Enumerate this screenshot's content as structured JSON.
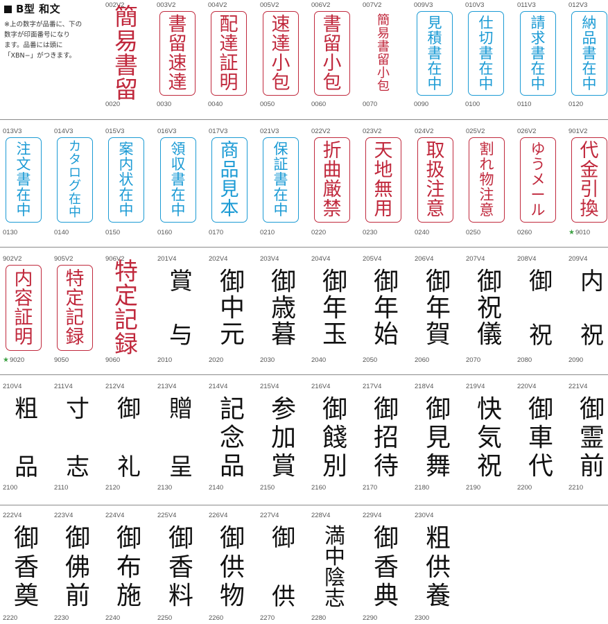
{
  "header": {
    "title": "B型 和文",
    "note": [
      "※上の数字が品番に、下の",
      "数字が印面番号になり",
      "ます。品番には頭に",
      "「XBN−」がつきます。"
    ]
  },
  "colors": {
    "red": "#c0283c",
    "blue": "#1a9ad4",
    "ink": "#111111",
    "star": "#3da144"
  },
  "items": [
    {
      "code": "002V2",
      "text": "簡易書留",
      "num": "0020",
      "style": "red-noborder"
    },
    {
      "code": "003V2",
      "text": "書留速達",
      "num": "0030",
      "style": "red"
    },
    {
      "code": "004V2",
      "text": "配達証明",
      "num": "0040",
      "style": "red"
    },
    {
      "code": "005V2",
      "text": "速達小包",
      "num": "0050",
      "style": "red"
    },
    {
      "code": "006V2",
      "text": "書留小包",
      "num": "0060",
      "style": "red"
    },
    {
      "code": "007V2",
      "text": "簡易書留小包",
      "num": "0070",
      "style": "red-noborder"
    },
    {
      "code": "009V3",
      "text": "見積書在中",
      "num": "0090",
      "style": "blue"
    },
    {
      "code": "010V3",
      "text": "仕切書在中",
      "num": "0100",
      "style": "blue"
    },
    {
      "code": "011V3",
      "text": "請求書在中",
      "num": "0110",
      "style": "blue"
    },
    {
      "code": "012V3",
      "text": "納品書在中",
      "num": "0120",
      "style": "blue"
    },
    {
      "code": "013V3",
      "text": "注文書在中",
      "num": "0130",
      "style": "blue"
    },
    {
      "code": "014V3",
      "text": "カタログ在中",
      "num": "0140",
      "style": "blue"
    },
    {
      "code": "015V3",
      "text": "案内状在中",
      "num": "0150",
      "style": "blue"
    },
    {
      "code": "016V3",
      "text": "領収書在中",
      "num": "0160",
      "style": "blue"
    },
    {
      "code": "017V3",
      "text": "商品見本",
      "num": "0170",
      "style": "blue"
    },
    {
      "code": "021V3",
      "text": "保証書在中",
      "num": "0210",
      "style": "blue"
    },
    {
      "code": "022V2",
      "text": "折曲厳禁",
      "num": "0220",
      "style": "red"
    },
    {
      "code": "023V2",
      "text": "天地無用",
      "num": "0230",
      "style": "red"
    },
    {
      "code": "024V2",
      "text": "取扱注意",
      "num": "0240",
      "style": "red"
    },
    {
      "code": "025V2",
      "text": "割れ物注意",
      "num": "0250",
      "style": "red"
    },
    {
      "code": "026V2",
      "text": "ゆうメール",
      "num": "0260",
      "style": "red"
    },
    {
      "code": "901V2",
      "text": "代金引換",
      "num": "9010",
      "style": "red",
      "star": true
    },
    {
      "code": "902V2",
      "text": "内容証明",
      "num": "9020",
      "style": "red",
      "star": true
    },
    {
      "code": "905V2",
      "text": "特定記録",
      "num": "9050",
      "style": "red"
    },
    {
      "code": "906V2",
      "text": "特定記録",
      "num": "9060",
      "style": "red-noborder"
    },
    {
      "code": "201V4",
      "text": "賞与",
      "num": "2010",
      "style": "ink"
    },
    {
      "code": "202V4",
      "text": "御中元",
      "num": "2020",
      "style": "ink"
    },
    {
      "code": "203V4",
      "text": "御歳暮",
      "num": "2030",
      "style": "ink"
    },
    {
      "code": "204V4",
      "text": "御年玉",
      "num": "2040",
      "style": "ink"
    },
    {
      "code": "205V4",
      "text": "御年始",
      "num": "2050",
      "style": "ink"
    },
    {
      "code": "206V4",
      "text": "御年賀",
      "num": "2060",
      "style": "ink"
    },
    {
      "code": "207V4",
      "text": "御祝儀",
      "num": "2070",
      "style": "ink"
    },
    {
      "code": "208V4",
      "text": "御祝",
      "num": "2080",
      "style": "ink"
    },
    {
      "code": "209V4",
      "text": "内祝",
      "num": "2090",
      "style": "ink"
    },
    {
      "code": "210V4",
      "text": "粗品",
      "num": "2100",
      "style": "ink"
    },
    {
      "code": "211V4",
      "text": "寸志",
      "num": "2110",
      "style": "ink"
    },
    {
      "code": "212V4",
      "text": "御礼",
      "num": "2120",
      "style": "ink"
    },
    {
      "code": "213V4",
      "text": "贈呈",
      "num": "2130",
      "style": "ink"
    },
    {
      "code": "214V4",
      "text": "記念品",
      "num": "2140",
      "style": "ink"
    },
    {
      "code": "215V4",
      "text": "参加賞",
      "num": "2150",
      "style": "ink"
    },
    {
      "code": "216V4",
      "text": "御餞別",
      "num": "2160",
      "style": "ink"
    },
    {
      "code": "217V4",
      "text": "御招待",
      "num": "2170",
      "style": "ink"
    },
    {
      "code": "218V4",
      "text": "御見舞",
      "num": "2180",
      "style": "ink"
    },
    {
      "code": "219V4",
      "text": "快気祝",
      "num": "2190",
      "style": "ink"
    },
    {
      "code": "220V4",
      "text": "御車代",
      "num": "2200",
      "style": "ink"
    },
    {
      "code": "221V4",
      "text": "御霊前",
      "num": "2210",
      "style": "ink"
    },
    {
      "code": "222V4",
      "text": "御香奠",
      "num": "2220",
      "style": "ink"
    },
    {
      "code": "223V4",
      "text": "御佛前",
      "num": "2230",
      "style": "ink"
    },
    {
      "code": "224V4",
      "text": "御布施",
      "num": "2240",
      "style": "ink"
    },
    {
      "code": "225V4",
      "text": "御香料",
      "num": "2250",
      "style": "ink"
    },
    {
      "code": "226V4",
      "text": "御供物",
      "num": "2260",
      "style": "ink"
    },
    {
      "code": "227V4",
      "text": "御供",
      "num": "2270",
      "style": "ink"
    },
    {
      "code": "228V4",
      "text": "満中陰志",
      "num": "2280",
      "style": "ink"
    },
    {
      "code": "229V4",
      "text": "御香典",
      "num": "2290",
      "style": "ink"
    },
    {
      "code": "230V4",
      "text": "粗供養",
      "num": "2300",
      "style": "ink"
    }
  ]
}
